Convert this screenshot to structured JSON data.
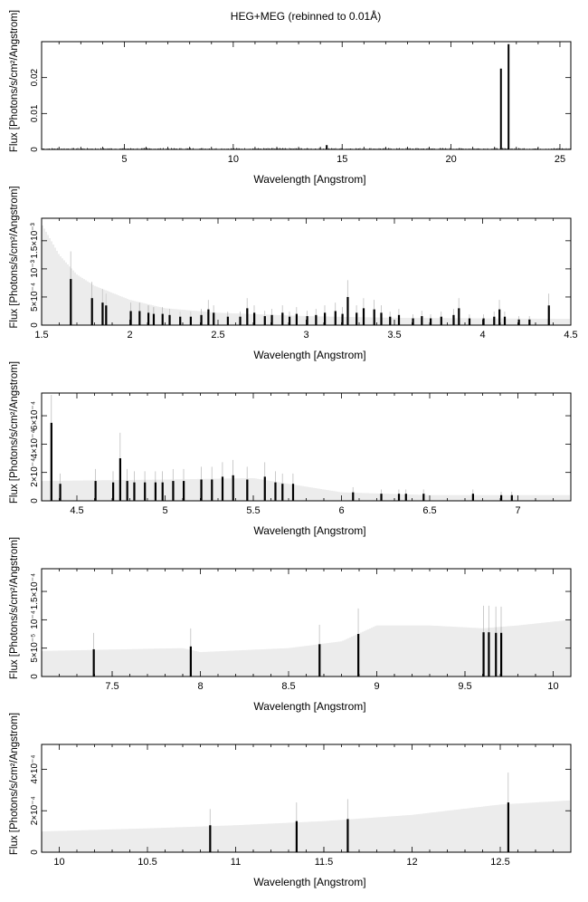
{
  "figure_title": "HEG+MEG (rebinned to 0.01Å)",
  "chart_data": [
    {
      "type": "bar",
      "xlabel": "Wavelength [Angstrom]",
      "ylabel": "Flux [Photons/s/cm²/Angstrom]",
      "xlim": [
        1.2,
        25.5
      ],
      "ylim": [
        0,
        0.03
      ],
      "xticks": [
        5,
        10,
        15,
        20,
        25
      ],
      "xtick_labels": [
        "5",
        "10",
        "15",
        "20",
        "25"
      ],
      "yticks": [
        0,
        0.01,
        0.02
      ],
      "ytick_labels": [
        "0",
        "0.01",
        "0.02"
      ],
      "noise_level": 0.0003,
      "bars": [
        {
          "x": 14.25,
          "y": 0.0012
        },
        {
          "x": 22.25,
          "y": 0.0225
        },
        {
          "x": 22.6,
          "y": 0.0293
        }
      ]
    },
    {
      "type": "bar",
      "xlabel": "Wavelength [Angstrom]",
      "ylabel": "Flux [Photons/s/cm²/Angstrom]",
      "xlim": [
        1.5,
        4.5
      ],
      "ylim": [
        0,
        0.0019
      ],
      "xticks": [
        1.5,
        2,
        2.5,
        3,
        3.5,
        4,
        4.5
      ],
      "xtick_labels": [
        "1.5",
        "2",
        "2.5",
        "3",
        "3.5",
        "4",
        "4.5"
      ],
      "yticks": [
        0,
        0.0005,
        0.001,
        0.0015
      ],
      "ytick_labels": [
        "0",
        "5×10⁻⁴",
        "10⁻³",
        "1.5×10⁻³"
      ],
      "error_envelope": [
        [
          1.5,
          0.0018
        ],
        [
          1.6,
          0.00125
        ],
        [
          1.7,
          0.0009
        ],
        [
          1.8,
          0.0007
        ],
        [
          2.0,
          0.00045
        ],
        [
          2.2,
          0.0003
        ],
        [
          2.5,
          0.00022
        ],
        [
          3.0,
          0.00016
        ],
        [
          3.5,
          0.00013
        ],
        [
          4.0,
          0.00012
        ],
        [
          4.5,
          0.00011
        ]
      ],
      "bars": [
        {
          "x": 1.66,
          "y": 0.00082
        },
        {
          "x": 1.78,
          "y": 0.00048
        },
        {
          "x": 1.84,
          "y": 0.0004
        },
        {
          "x": 1.86,
          "y": 0.00035
        },
        {
          "x": 2.0,
          "y": 0.00025
        },
        {
          "x": 2.05,
          "y": 0.00025
        },
        {
          "x": 2.1,
          "y": 0.00022
        },
        {
          "x": 2.13,
          "y": 0.0002
        },
        {
          "x": 2.18,
          "y": 0.0002
        },
        {
          "x": 2.22,
          "y": 0.00018
        },
        {
          "x": 2.28,
          "y": 0.00015
        },
        {
          "x": 2.34,
          "y": 0.00015
        },
        {
          "x": 2.4,
          "y": 0.00018
        },
        {
          "x": 2.44,
          "y": 0.00028
        },
        {
          "x": 2.47,
          "y": 0.00022
        },
        {
          "x": 2.55,
          "y": 0.00015
        },
        {
          "x": 2.62,
          "y": 0.00015
        },
        {
          "x": 2.66,
          "y": 0.0003
        },
        {
          "x": 2.7,
          "y": 0.00022
        },
        {
          "x": 2.76,
          "y": 0.00016
        },
        {
          "x": 2.8,
          "y": 0.00018
        },
        {
          "x": 2.86,
          "y": 0.00022
        },
        {
          "x": 2.9,
          "y": 0.00015
        },
        {
          "x": 2.94,
          "y": 0.0002
        },
        {
          "x": 3.0,
          "y": 0.00016
        },
        {
          "x": 3.05,
          "y": 0.00018
        },
        {
          "x": 3.1,
          "y": 0.00022
        },
        {
          "x": 3.16,
          "y": 0.00025
        },
        {
          "x": 3.2,
          "y": 0.0002
        },
        {
          "x": 3.23,
          "y": 0.0005
        },
        {
          "x": 3.28,
          "y": 0.00022
        },
        {
          "x": 3.32,
          "y": 0.0003
        },
        {
          "x": 3.38,
          "y": 0.00028
        },
        {
          "x": 3.42,
          "y": 0.00022
        },
        {
          "x": 3.47,
          "y": 0.00015
        },
        {
          "x": 3.52,
          "y": 0.00018
        },
        {
          "x": 3.6,
          "y": 0.00012
        },
        {
          "x": 3.65,
          "y": 0.00016
        },
        {
          "x": 3.7,
          "y": 0.00012
        },
        {
          "x": 3.76,
          "y": 0.00015
        },
        {
          "x": 3.83,
          "y": 0.00018
        },
        {
          "x": 3.86,
          "y": 0.0003
        },
        {
          "x": 3.92,
          "y": 0.00012
        },
        {
          "x": 4.0,
          "y": 0.00012
        },
        {
          "x": 4.06,
          "y": 0.00015
        },
        {
          "x": 4.09,
          "y": 0.00028
        },
        {
          "x": 4.12,
          "y": 0.00015
        },
        {
          "x": 4.2,
          "y": 0.0001
        },
        {
          "x": 4.26,
          "y": 0.0001
        },
        {
          "x": 4.37,
          "y": 0.00035
        }
      ]
    },
    {
      "type": "bar",
      "xlabel": "Wavelength [Angstrom]",
      "ylabel": "Flux [Photons/s/cm²/Angstrom]",
      "xlim": [
        4.3,
        7.3
      ],
      "ylim": [
        0,
        0.00076
      ],
      "xticks": [
        4.5,
        5,
        5.5,
        6,
        6.5,
        7
      ],
      "xtick_labels": [
        "4.5",
        "5",
        "5.5",
        "6",
        "6.5",
        "7"
      ],
      "yticks": [
        0,
        0.0002,
        0.0004,
        0.0006
      ],
      "ytick_labels": [
        "0",
        "2×10⁻⁴",
        "4×10⁻⁴",
        "6×10⁻⁴"
      ],
      "error_envelope": [
        [
          4.3,
          0.00014
        ],
        [
          5.0,
          0.00015
        ],
        [
          5.5,
          0.00016
        ],
        [
          5.7,
          0.00012
        ],
        [
          6.0,
          6e-05
        ],
        [
          6.5,
          4e-05
        ],
        [
          7.3,
          4e-05
        ]
      ],
      "bars": [
        {
          "x": 4.35,
          "y": 0.00055
        },
        {
          "x": 4.4,
          "y": 0.00012
        },
        {
          "x": 4.6,
          "y": 0.00014
        },
        {
          "x": 4.7,
          "y": 0.00013
        },
        {
          "x": 4.74,
          "y": 0.0003
        },
        {
          "x": 4.78,
          "y": 0.00014
        },
        {
          "x": 4.82,
          "y": 0.00013
        },
        {
          "x": 4.88,
          "y": 0.00013
        },
        {
          "x": 4.94,
          "y": 0.00013
        },
        {
          "x": 4.98,
          "y": 0.00013
        },
        {
          "x": 5.04,
          "y": 0.00014
        },
        {
          "x": 5.1,
          "y": 0.00014
        },
        {
          "x": 5.2,
          "y": 0.00015
        },
        {
          "x": 5.26,
          "y": 0.00015
        },
        {
          "x": 5.32,
          "y": 0.00017
        },
        {
          "x": 5.38,
          "y": 0.00018
        },
        {
          "x": 5.46,
          "y": 0.00015
        },
        {
          "x": 5.56,
          "y": 0.00017
        },
        {
          "x": 5.62,
          "y": 0.00013
        },
        {
          "x": 5.66,
          "y": 0.00012
        },
        {
          "x": 5.72,
          "y": 0.00012
        },
        {
          "x": 6.06,
          "y": 6e-05
        },
        {
          "x": 6.22,
          "y": 5e-05
        },
        {
          "x": 6.32,
          "y": 5e-05
        },
        {
          "x": 6.36,
          "y": 5e-05
        },
        {
          "x": 6.46,
          "y": 5e-05
        },
        {
          "x": 6.74,
          "y": 5e-05
        },
        {
          "x": 6.9,
          "y": 4e-05
        },
        {
          "x": 6.96,
          "y": 4e-05
        }
      ]
    },
    {
      "type": "bar",
      "xlabel": "Wavelength [Angstrom]",
      "ylabel": "Flux [Photons/s/cm²/Angstrom]",
      "xlim": [
        7.1,
        10.1
      ],
      "ylim": [
        0,
        0.00019
      ],
      "xticks": [
        7.5,
        8,
        8.5,
        9,
        9.5,
        10
      ],
      "xtick_labels": [
        "7.5",
        "8",
        "8.5",
        "9",
        "9.5",
        "10"
      ],
      "yticks": [
        0,
        5e-05,
        0.0001,
        0.00015
      ],
      "ytick_labels": [
        "0",
        "5×10⁻⁵",
        "10⁻⁴",
        "1.5×10⁻⁴"
      ],
      "error_envelope": [
        [
          7.1,
          4.5e-05
        ],
        [
          7.9,
          5e-05
        ],
        [
          8.0,
          4.3e-05
        ],
        [
          8.5,
          5e-05
        ],
        [
          8.8,
          6.2e-05
        ],
        [
          9.0,
          9e-05
        ],
        [
          9.3,
          9e-05
        ],
        [
          9.6,
          8.5e-05
        ],
        [
          9.8,
          9e-05
        ],
        [
          10.1,
          0.0001
        ]
      ],
      "bars": [
        {
          "x": 7.39,
          "y": 4.8e-05
        },
        {
          "x": 7.94,
          "y": 5.3e-05
        },
        {
          "x": 8.67,
          "y": 5.7e-05
        },
        {
          "x": 8.89,
          "y": 7.5e-05
        },
        {
          "x": 9.6,
          "y": 7.8e-05
        },
        {
          "x": 9.63,
          "y": 7.8e-05
        },
        {
          "x": 9.67,
          "y": 7.7e-05
        },
        {
          "x": 9.7,
          "y": 7.7e-05
        }
      ]
    },
    {
      "type": "bar",
      "xlabel": "Wavelength [Angstrom]",
      "ylabel": "Flux [Photons/s/cm²/Angstrom]",
      "xlim": [
        9.9,
        12.9
      ],
      "ylim": [
        0,
        0.00052
      ],
      "xticks": [
        10,
        10.5,
        11,
        11.5,
        12,
        12.5
      ],
      "xtick_labels": [
        "10",
        "10.5",
        "11",
        "11.5",
        "12",
        "12.5"
      ],
      "yticks": [
        0,
        0.0002,
        0.0004
      ],
      "ytick_labels": [
        "0",
        "2×10⁻⁴",
        "4×10⁻⁴"
      ],
      "error_envelope": [
        [
          9.9,
          0.0001
        ],
        [
          10.5,
          0.000115
        ],
        [
          11.0,
          0.00013
        ],
        [
          11.5,
          0.00015
        ],
        [
          12.0,
          0.00018
        ],
        [
          12.5,
          0.00023
        ],
        [
          12.9,
          0.00025
        ]
      ],
      "bars": [
        {
          "x": 10.85,
          "y": 0.00013
        },
        {
          "x": 11.34,
          "y": 0.00015
        },
        {
          "x": 11.63,
          "y": 0.00016
        },
        {
          "x": 12.54,
          "y": 0.00024
        }
      ]
    }
  ]
}
